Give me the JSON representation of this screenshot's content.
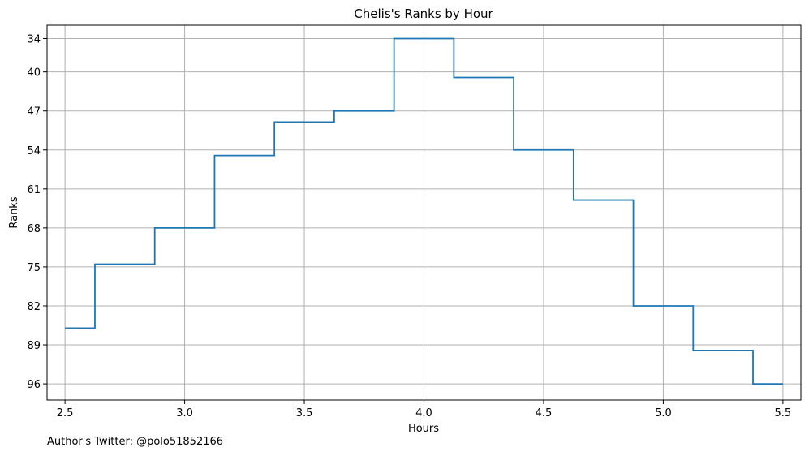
{
  "chart_data": {
    "type": "line",
    "drawstyle": "steps-mid",
    "title": "Chelis's Ranks by Hour",
    "xlabel": "Hours",
    "ylabel": "Ranks",
    "xlim": [
      2.425,
      5.575
    ],
    "ylim": [
      98.9,
      31.6
    ],
    "y_inverted": true,
    "grid": true,
    "x_ticks": [
      2.5,
      3.0,
      3.5,
      4.0,
      4.5,
      5.0,
      5.5
    ],
    "x_tick_labels": [
      "2.5",
      "3.0",
      "3.5",
      "4.0",
      "4.5",
      "5.0",
      "5.5"
    ],
    "y_ticks": [
      34,
      40,
      47,
      54,
      61,
      68,
      75,
      82,
      89,
      96
    ],
    "y_tick_labels": [
      "34",
      "40",
      "47",
      "54",
      "61",
      "68",
      "75",
      "82",
      "89",
      "96"
    ],
    "series": [
      {
        "color": "#1f77b4",
        "x": [
          2.5,
          2.75,
          3.0,
          3.25,
          3.5,
          3.75,
          4.0,
          4.25,
          4.5,
          4.75,
          5.0,
          5.25,
          5.5
        ],
        "y": [
          86,
          74.5,
          68,
          55,
          49,
          47,
          34,
          41,
          54,
          63,
          82,
          90,
          96
        ]
      }
    ]
  },
  "footnote": "Author's Twitter: @polo51852166"
}
